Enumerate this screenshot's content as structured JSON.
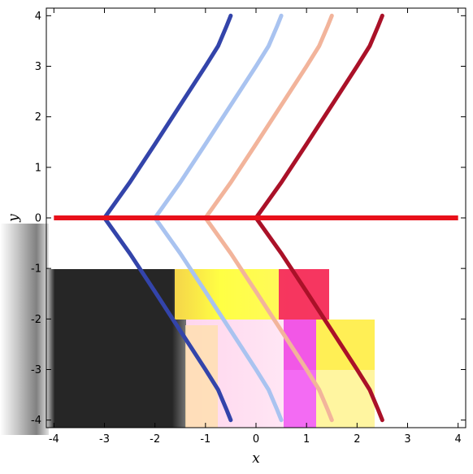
{
  "chart_data": {
    "type": "line",
    "title": "",
    "xlabel": "x",
    "ylabel": "y",
    "xlim": [
      -4.15,
      4.15
    ],
    "ylim": [
      -4.15,
      4.15
    ],
    "x_ticks": [
      -4,
      -3,
      -2,
      -1,
      0,
      1,
      2,
      3,
      4
    ],
    "y_ticks": [
      -4,
      -3,
      -2,
      -1,
      0,
      1,
      2,
      3,
      4
    ],
    "x_tick_labels": [
      "-4",
      "-3",
      "-2",
      "-1",
      "0",
      "1",
      "2",
      "3",
      "4"
    ],
    "y_tick_labels": [
      "-4",
      "-3",
      "-2",
      "-1",
      "0",
      "1",
      "2",
      "3",
      "4"
    ],
    "grid": false,
    "series": [
      {
        "kind": "horizontal-line",
        "y": 0,
        "x_range": [
          -4,
          4
        ],
        "color": "#e8101a"
      },
      {
        "kind": "cusp-curve",
        "cusp_x": -3.0,
        "color": "#3344aa",
        "points": [
          [
            -3.0,
            0
          ],
          [
            -2.5,
            0.7
          ],
          [
            -2,
            1.46
          ],
          [
            -1.5,
            2.23
          ],
          [
            -1,
            3.0
          ],
          [
            -0.75,
            3.4
          ],
          [
            -0.58,
            3.8
          ],
          [
            -0.5,
            4.0
          ]
        ]
      },
      {
        "kind": "cusp-curve",
        "cusp_x": -2.0,
        "color": "#a9c3f0",
        "points": [
          [
            -2.0,
            0
          ],
          [
            -1.5,
            0.7
          ],
          [
            -1,
            1.46
          ],
          [
            -0.5,
            2.23
          ],
          [
            0,
            3.0
          ],
          [
            0.25,
            3.4
          ],
          [
            0.42,
            3.8
          ],
          [
            0.5,
            4.0
          ]
        ]
      },
      {
        "kind": "cusp-curve",
        "cusp_x": -1.0,
        "color": "#f2b49b",
        "points": [
          [
            -1.0,
            0
          ],
          [
            -0.5,
            0.7
          ],
          [
            0,
            1.46
          ],
          [
            0.5,
            2.23
          ],
          [
            1,
            3.0
          ],
          [
            1.25,
            3.4
          ],
          [
            1.42,
            3.8
          ],
          [
            1.5,
            4.0
          ]
        ]
      },
      {
        "kind": "cusp-curve",
        "cusp_x": 0.0,
        "color": "#aa1128",
        "points": [
          [
            0.0,
            0
          ],
          [
            0.5,
            0.7
          ],
          [
            1,
            1.46
          ],
          [
            1.5,
            2.23
          ],
          [
            2,
            3.0
          ],
          [
            2.25,
            3.4
          ],
          [
            2.42,
            3.8
          ],
          [
            2.5,
            4.0
          ]
        ]
      }
    ],
    "lower_half_notes": "lower half is a corrupted bitmap region showing black, yellow, pink and magenta blocks; mirrored curves continue downward"
  }
}
